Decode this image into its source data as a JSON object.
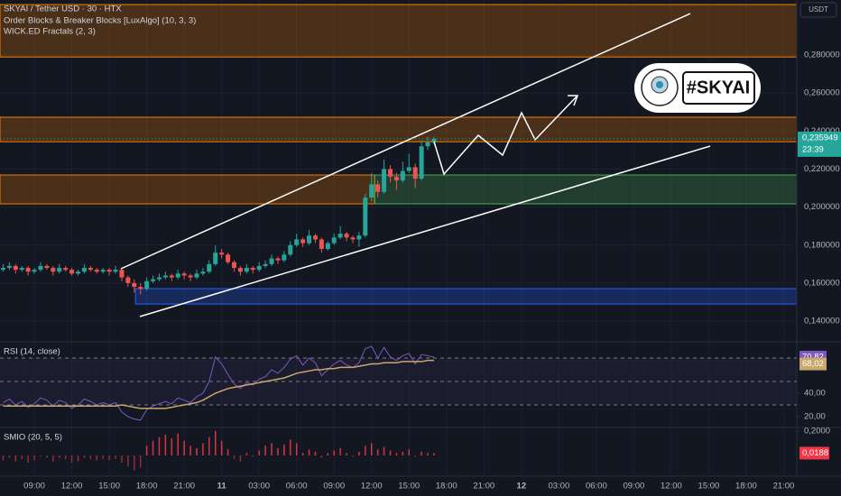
{
  "chart_data": {
    "type": "candlestick",
    "title": "SKYAI / Tether USD · 30 · HTX",
    "indicators": [
      "Order Blocks & Breaker Blocks [LuxAlgo] (10, 3, 3)",
      "WICK.ED Fractals (2, 3)"
    ],
    "currency": "USDT",
    "badge": "#SKYAI",
    "countdown": "23:39",
    "up_color": "#26a69a",
    "down_color": "#ef5350",
    "xlim": [
      0,
      127.6
    ],
    "xticks": [
      {
        "value": 5.5,
        "label": "09:00"
      },
      {
        "value": 11.5,
        "label": "12:00"
      },
      {
        "value": 17.5,
        "label": "15:00"
      },
      {
        "value": 23.5,
        "label": "18:00"
      },
      {
        "value": 29.5,
        "label": "21:00"
      },
      {
        "value": 35.5,
        "label": "11"
      },
      {
        "value": 41.5,
        "label": "03:00"
      },
      {
        "value": 47.5,
        "label": "06:00"
      },
      {
        "value": 53.5,
        "label": "09:00"
      },
      {
        "value": 59.5,
        "label": "12:00"
      },
      {
        "value": 65.5,
        "label": "15:00"
      },
      {
        "value": 71.5,
        "label": "18:00"
      },
      {
        "value": 77.5,
        "label": "21:00"
      },
      {
        "value": 83.5,
        "label": "12"
      },
      {
        "value": 89.5,
        "label": "03:00"
      },
      {
        "value": 95.5,
        "label": "06:00"
      },
      {
        "value": 101.5,
        "label": "09:00"
      },
      {
        "value": 107.5,
        "label": "12:00"
      },
      {
        "value": 113.5,
        "label": "15:00"
      },
      {
        "value": 119.5,
        "label": "18:00"
      },
      {
        "value": 125.5,
        "label": "21:00"
      }
    ],
    "ylim": [
      0.131,
      0.309
    ],
    "yticks": [
      {
        "value": 0.14,
        "label": "0,140000"
      },
      {
        "value": 0.16,
        "label": "0,160000"
      },
      {
        "value": 0.18,
        "label": "0,180000"
      },
      {
        "value": 0.2,
        "label": "0,200000"
      },
      {
        "value": 0.22,
        "label": "0,220000"
      },
      {
        "value": 0.24,
        "label": "0,240000"
      },
      {
        "value": 0.26,
        "label": "0,260000"
      },
      {
        "value": 0.28,
        "label": "0,280000"
      }
    ],
    "grid": true,
    "last_price": {
      "value": 0.235949,
      "label": "0,235949"
    },
    "zones": [
      {
        "top": 0.3066,
        "bottom": 0.279,
        "from": 0,
        "to": 127.6,
        "color": "#f57c00"
      },
      {
        "top": 0.2473,
        "bottom": 0.2344,
        "from": 0,
        "to": 127.6,
        "color": "#f57c00"
      },
      {
        "top": 0.2169,
        "bottom": 0.2017,
        "from": 0,
        "to": 60,
        "color": "#f57c00"
      },
      {
        "top": 0.2169,
        "bottom": 0.2017,
        "from": 60,
        "to": 127.6,
        "color": "#4caf50"
      },
      {
        "top": 0.1571,
        "bottom": 0.149,
        "from": 21.7,
        "to": 127.6,
        "color": "#2962ff"
      }
    ],
    "candles": [
      [
        0.167,
        0.17,
        0.166,
        0.168
      ],
      [
        0.168,
        0.171,
        0.167,
        0.169
      ],
      [
        0.169,
        0.17,
        0.165,
        0.167
      ],
      [
        0.167,
        0.169,
        0.166,
        0.168
      ],
      [
        0.168,
        0.169,
        0.164,
        0.166
      ],
      [
        0.166,
        0.168,
        0.165,
        0.167
      ],
      [
        0.167,
        0.171,
        0.166,
        0.169
      ],
      [
        0.169,
        0.17,
        0.167,
        0.168
      ],
      [
        0.168,
        0.169,
        0.164,
        0.166
      ],
      [
        0.166,
        0.17,
        0.165,
        0.168
      ],
      [
        0.168,
        0.169,
        0.166,
        0.167
      ],
      [
        0.167,
        0.168,
        0.164,
        0.165
      ],
      [
        0.165,
        0.167,
        0.164,
        0.166
      ],
      [
        0.166,
        0.17,
        0.165,
        0.168
      ],
      [
        0.168,
        0.169,
        0.166,
        0.167
      ],
      [
        0.167,
        0.168,
        0.165,
        0.166
      ],
      [
        0.166,
        0.168,
        0.165,
        0.167
      ],
      [
        0.167,
        0.168,
        0.164,
        0.166
      ],
      [
        0.166,
        0.169,
        0.165,
        0.167
      ],
      [
        0.167,
        0.168,
        0.161,
        0.163
      ],
      [
        0.163,
        0.164,
        0.158,
        0.16
      ],
      [
        0.16,
        0.162,
        0.155,
        0.158
      ],
      [
        0.158,
        0.16,
        0.154,
        0.157
      ],
      [
        0.157,
        0.163,
        0.156,
        0.161
      ],
      [
        0.161,
        0.164,
        0.16,
        0.162
      ],
      [
        0.162,
        0.165,
        0.161,
        0.163
      ],
      [
        0.163,
        0.166,
        0.162,
        0.164
      ],
      [
        0.164,
        0.165,
        0.161,
        0.163
      ],
      [
        0.163,
        0.167,
        0.162,
        0.165
      ],
      [
        0.165,
        0.166,
        0.162,
        0.164
      ],
      [
        0.164,
        0.165,
        0.161,
        0.163
      ],
      [
        0.163,
        0.167,
        0.162,
        0.165
      ],
      [
        0.165,
        0.168,
        0.164,
        0.166
      ],
      [
        0.166,
        0.172,
        0.165,
        0.17
      ],
      [
        0.17,
        0.18,
        0.169,
        0.176
      ],
      [
        0.176,
        0.178,
        0.173,
        0.175
      ],
      [
        0.175,
        0.176,
        0.17,
        0.171
      ],
      [
        0.171,
        0.172,
        0.166,
        0.168
      ],
      [
        0.168,
        0.169,
        0.164,
        0.166
      ],
      [
        0.166,
        0.17,
        0.165,
        0.168
      ],
      [
        0.168,
        0.169,
        0.165,
        0.167
      ],
      [
        0.167,
        0.171,
        0.166,
        0.169
      ],
      [
        0.169,
        0.172,
        0.168,
        0.17
      ],
      [
        0.17,
        0.175,
        0.169,
        0.173
      ],
      [
        0.173,
        0.174,
        0.17,
        0.172
      ],
      [
        0.172,
        0.177,
        0.171,
        0.175
      ],
      [
        0.175,
        0.182,
        0.174,
        0.18
      ],
      [
        0.18,
        0.186,
        0.179,
        0.183
      ],
      [
        0.183,
        0.184,
        0.179,
        0.181
      ],
      [
        0.181,
        0.188,
        0.18,
        0.185
      ],
      [
        0.185,
        0.186,
        0.181,
        0.183
      ],
      [
        0.183,
        0.184,
        0.176,
        0.178
      ],
      [
        0.178,
        0.182,
        0.177,
        0.181
      ],
      [
        0.181,
        0.186,
        0.18,
        0.184
      ],
      [
        0.184,
        0.19,
        0.183,
        0.186
      ],
      [
        0.186,
        0.187,
        0.182,
        0.184
      ],
      [
        0.184,
        0.185,
        0.181,
        0.183
      ],
      [
        0.183,
        0.187,
        0.179,
        0.185
      ],
      [
        0.185,
        0.207,
        0.184,
        0.205
      ],
      [
        0.205,
        0.218,
        0.203,
        0.212
      ],
      [
        0.212,
        0.214,
        0.205,
        0.208
      ],
      [
        0.208,
        0.225,
        0.207,
        0.22
      ],
      [
        0.22,
        0.222,
        0.213,
        0.216
      ],
      [
        0.216,
        0.218,
        0.209,
        0.214
      ],
      [
        0.214,
        0.224,
        0.213,
        0.219
      ],
      [
        0.219,
        0.228,
        0.218,
        0.221
      ],
      [
        0.221,
        0.223,
        0.21,
        0.215
      ],
      [
        0.215,
        0.235,
        0.214,
        0.232
      ],
      [
        0.232,
        0.237,
        0.23,
        0.234
      ],
      [
        0.234,
        0.237,
        0.233,
        0.235949
      ]
    ],
    "rsi": {
      "title": "RSI (14, close)",
      "ylim": [
        12.3,
        80.8
      ],
      "yticks": [
        {
          "value": 20,
          "label": "20,00"
        },
        {
          "value": 40,
          "label": "40,00"
        }
      ],
      "levels": [
        70,
        50,
        30
      ],
      "series": [
        {
          "color": "#7e57c2",
          "last_label": {
            "value": 70.82,
            "label": "70,82"
          },
          "values": [
            32,
            35,
            30,
            33,
            28,
            31,
            36,
            34,
            29,
            34,
            32,
            27,
            30,
            35,
            33,
            30,
            32,
            30,
            32,
            24,
            20,
            18,
            17,
            26,
            29,
            31,
            33,
            31,
            36,
            34,
            32,
            37,
            40,
            50,
            71,
            65,
            56,
            48,
            44,
            49,
            47,
            52,
            54,
            60,
            57,
            62,
            69,
            72,
            64,
            70,
            66,
            55,
            60,
            65,
            68,
            64,
            62,
            66,
            78,
            80,
            70,
            79,
            71,
            68,
            72,
            74,
            65,
            73,
            72,
            70.82
          ]
        },
        {
          "color": "#c9a86a",
          "last_label": {
            "value": 68.02,
            "label": "68,02"
          },
          "values": [
            29,
            29,
            29,
            29,
            29,
            29,
            29,
            29,
            29,
            29,
            29,
            29,
            29,
            29,
            29,
            29,
            29,
            29,
            29,
            30,
            29,
            28,
            27,
            27,
            27,
            27,
            27,
            28,
            29,
            30,
            31,
            32,
            34,
            37,
            40,
            42,
            44,
            45,
            46,
            47,
            48,
            49,
            50,
            51,
            52,
            53,
            55,
            57,
            58,
            59,
            60,
            60,
            61,
            61,
            62,
            62,
            62,
            63,
            64,
            65,
            65,
            66,
            66,
            66,
            67,
            67,
            67,
            67,
            68,
            68.02
          ]
        }
      ]
    },
    "smio": {
      "title": "SMIO (20, 5, 5)",
      "ylim": [
        -0.148,
        0.222
      ],
      "color": "#f23645",
      "yticks": [
        {
          "value": 0.2,
          "label": "0,2000"
        }
      ],
      "last_label": {
        "value": 0.0188,
        "label": "0,0188"
      },
      "values": [
        -0.04,
        -0.02,
        -0.05,
        -0.03,
        -0.06,
        -0.04,
        -0.01,
        -0.02,
        -0.05,
        -0.02,
        -0.03,
        -0.06,
        -0.05,
        -0.02,
        -0.03,
        -0.04,
        -0.03,
        -0.04,
        -0.03,
        -0.06,
        -0.09,
        -0.12,
        -0.1,
        0.08,
        0.12,
        0.15,
        0.17,
        0.14,
        0.18,
        0.12,
        0.08,
        0.06,
        0.1,
        0.15,
        0.2,
        0.12,
        0.05,
        -0.03,
        -0.05,
        0.02,
        -0.01,
        0.04,
        0.08,
        0.1,
        0.06,
        0.09,
        0.13,
        0.1,
        0.02,
        0.05,
        0.03,
        -0.02,
        0.02,
        0.04,
        0.06,
        0.02,
        -0.01,
        0.03,
        0.08,
        0.1,
        0.05,
        0.07,
        0.04,
        0.02,
        0.03,
        0.05,
        -0.01,
        0.03,
        0.02,
        0.0188
      ]
    }
  }
}
